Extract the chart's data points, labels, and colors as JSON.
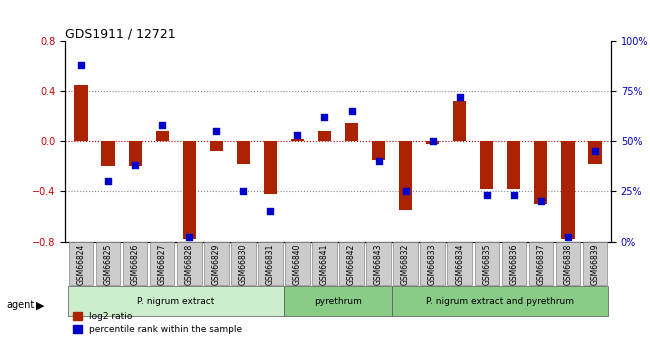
{
  "title": "GDS1911 / 12721",
  "samples": [
    "GSM66824",
    "GSM66825",
    "GSM66826",
    "GSM66827",
    "GSM66828",
    "GSM66829",
    "GSM66830",
    "GSM66831",
    "GSM66840",
    "GSM66841",
    "GSM66842",
    "GSM66843",
    "GSM66832",
    "GSM66833",
    "GSM66834",
    "GSM66835",
    "GSM66836",
    "GSM66837",
    "GSM66838",
    "GSM66839"
  ],
  "log2_ratio": [
    0.45,
    -0.2,
    -0.2,
    0.08,
    -0.78,
    -0.08,
    -0.18,
    -0.42,
    0.02,
    0.08,
    0.15,
    -0.15,
    -0.55,
    -0.02,
    0.32,
    -0.38,
    -0.38,
    -0.5,
    -0.78,
    -0.18
  ],
  "pct_rank": [
    88,
    30,
    38,
    58,
    2,
    55,
    25,
    15,
    53,
    62,
    65,
    40,
    25,
    50,
    72,
    23,
    23,
    20,
    2,
    45
  ],
  "bar_color": "#aa2200",
  "dot_color": "#0000cc",
  "bg_color": "#f0f0f0",
  "ylim_left": [
    -0.8,
    0.8
  ],
  "ylim_right": [
    0,
    100
  ],
  "yticks_left": [
    -0.8,
    -0.4,
    0.0,
    0.4,
    0.8
  ],
  "yticks_right": [
    0,
    25,
    50,
    75,
    100
  ],
  "ytick_labels_right": [
    "0%",
    "25%",
    "50%",
    "75%",
    "100%"
  ],
  "hlines": [
    0.4,
    0.0,
    -0.4
  ],
  "hline_colors": [
    "#888888",
    "#cc0000",
    "#888888"
  ],
  "groups": [
    {
      "label": "P. nigrum extract",
      "start": 0,
      "end": 8,
      "color": "#cceecc"
    },
    {
      "label": "pyrethrum",
      "start": 8,
      "end": 12,
      "color": "#88cc88"
    },
    {
      "label": "P. nigrum extract and pyrethrum",
      "start": 12,
      "end": 20,
      "color": "#88cc88"
    }
  ],
  "group_bar_color": "#aaaaaa",
  "legend_items": [
    {
      "label": "log2 ratio",
      "color": "#aa2200",
      "marker": "s"
    },
    {
      "label": "percentile rank within the sample",
      "color": "#0000cc",
      "marker": "s"
    }
  ],
  "agent_label": "agent"
}
